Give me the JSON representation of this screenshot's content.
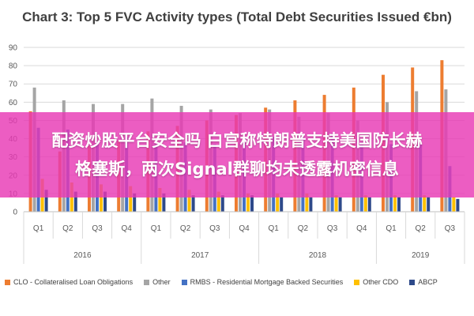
{
  "chart_data": {
    "type": "bar",
    "title": "Chart 3: Top 5 FVC Activity types (Total Debt Securities Issued €bn)",
    "xlabel": "",
    "ylabel": "",
    "ylim": [
      0,
      90
    ],
    "yticks": [
      0,
      10,
      20,
      30,
      40,
      50,
      60,
      70,
      80,
      90
    ],
    "grid": true,
    "legend_position": "bottom",
    "categories": [
      "Q1",
      "Q2",
      "Q3",
      "Q4",
      "Q1",
      "Q2",
      "Q3",
      "Q4",
      "Q1",
      "Q2",
      "Q3",
      "Q4",
      "Q1",
      "Q2",
      "Q3"
    ],
    "years": [
      {
        "label": "2016",
        "quarters": 4
      },
      {
        "label": "2017",
        "quarters": 4
      },
      {
        "label": "2018",
        "quarters": 4
      },
      {
        "label": "2019",
        "quarters": 3
      }
    ],
    "series": [
      {
        "name": "CLO - Collateralised Loan Obligations",
        "color": "#ED7D31",
        "values": [
          55,
          33,
          36,
          39,
          44,
          47,
          50,
          53,
          57,
          61,
          64,
          68,
          75,
          79,
          83
        ]
      },
      {
        "name": "Other",
        "color": "#A5A5A5",
        "values": [
          68,
          61,
          59,
          59,
          62,
          58,
          56,
          54,
          56,
          52,
          54,
          50,
          60,
          66,
          67
        ]
      },
      {
        "name": "RMBS - Residential Mortgage Backed Securities",
        "color": "#4472C4",
        "values": [
          46,
          45,
          38,
          41,
          37,
          38,
          37,
          40,
          41,
          41,
          43,
          38,
          37,
          37,
          25
        ]
      },
      {
        "name": "Other CDO",
        "color": "#FFC000",
        "values": [
          18,
          16,
          15,
          14,
          13,
          12,
          11,
          10,
          10,
          10,
          9,
          9,
          9,
          9,
          8
        ]
      },
      {
        "name": "ABCP",
        "color": "#2E4A8A",
        "values": [
          12,
          11,
          11,
          10,
          10,
          9,
          9,
          9,
          8,
          8,
          8,
          8,
          8,
          8,
          7
        ]
      }
    ]
  },
  "banner": {
    "line1": "配资炒股平台安全吗 白宫称特朗普支持美国防长赫",
    "line2": "格塞斯，两次Signal群聊均未透露机密信息",
    "color": "#E839B4"
  }
}
